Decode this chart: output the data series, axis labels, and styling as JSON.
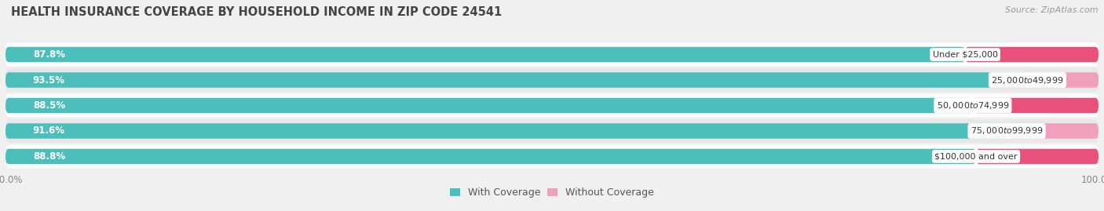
{
  "title": "HEALTH INSURANCE COVERAGE BY HOUSEHOLD INCOME IN ZIP CODE 24541",
  "source": "Source: ZipAtlas.com",
  "categories": [
    "Under $25,000",
    "$25,000 to $49,999",
    "$50,000 to $74,999",
    "$75,000 to $99,999",
    "$100,000 and over"
  ],
  "with_coverage": [
    87.8,
    93.5,
    88.5,
    91.6,
    88.8
  ],
  "without_coverage": [
    12.2,
    6.5,
    11.5,
    8.4,
    11.2
  ],
  "coverage_color": "#4CBFBC",
  "no_coverage_colors": [
    "#E8527A",
    "#F0A0BC",
    "#E8527A",
    "#F0A0BC",
    "#E8527A"
  ],
  "bg_color": "#f0f0f0",
  "row_bg_even": "#ffffff",
  "row_bg_odd": "#e8e8e8",
  "title_fontsize": 10.5,
  "source_fontsize": 8,
  "label_fontsize": 8.5,
  "tick_fontsize": 8.5,
  "legend_fontsize": 9,
  "cat_label_fontsize": 8
}
